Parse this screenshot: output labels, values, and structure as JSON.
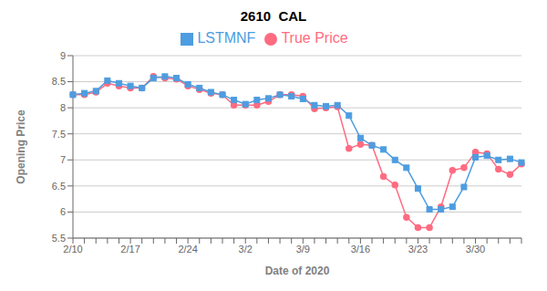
{
  "chart_data": {
    "type": "line",
    "title": "2610  CAL",
    "x_label": "Date of 2020",
    "y_label": "Opening Price",
    "categories": [
      "2/10",
      null,
      null,
      null,
      null,
      "2/17",
      null,
      null,
      null,
      null,
      "2/24",
      null,
      null,
      null,
      null,
      "3/2",
      null,
      null,
      null,
      null,
      "3/9",
      null,
      null,
      null,
      null,
      "3/16",
      null,
      null,
      null,
      null,
      "3/23",
      null,
      null,
      null,
      null,
      "3/30",
      null,
      null,
      null,
      null
    ],
    "series": [
      {
        "name": "True Price",
        "color": "#FF6B81",
        "marker": "circle",
        "values": [
          8.25,
          8.25,
          8.3,
          8.47,
          8.42,
          8.38,
          8.38,
          8.6,
          8.57,
          8.55,
          8.42,
          8.35,
          8.28,
          8.25,
          8.05,
          8.05,
          8.05,
          8.12,
          8.25,
          8.25,
          8.22,
          7.98,
          8.0,
          8.02,
          7.22,
          7.3,
          7.28,
          6.68,
          6.52,
          5.9,
          5.7,
          5.7,
          6.1,
          6.8,
          6.85,
          7.15,
          7.12,
          6.82,
          6.72,
          6.92
        ]
      },
      {
        "name": "LSTMNF",
        "color": "#4D9DE0",
        "marker": "square",
        "values": [
          8.25,
          8.28,
          8.32,
          8.52,
          8.47,
          8.42,
          8.38,
          8.57,
          8.6,
          8.57,
          8.45,
          8.38,
          8.3,
          8.25,
          8.15,
          8.07,
          8.15,
          8.18,
          8.25,
          8.22,
          8.17,
          8.05,
          8.03,
          8.05,
          7.85,
          7.42,
          7.28,
          7.2,
          7.0,
          6.85,
          6.45,
          6.05,
          6.05,
          6.1,
          6.48,
          7.05,
          7.08,
          7.0,
          7.02,
          6.95
        ]
      }
    ],
    "ylim": [
      5.5,
      9
    ],
    "yticks": [
      5.5,
      6,
      6.5,
      7,
      7.5,
      8,
      8.5,
      9
    ],
    "grid": "y",
    "legend": "top"
  }
}
